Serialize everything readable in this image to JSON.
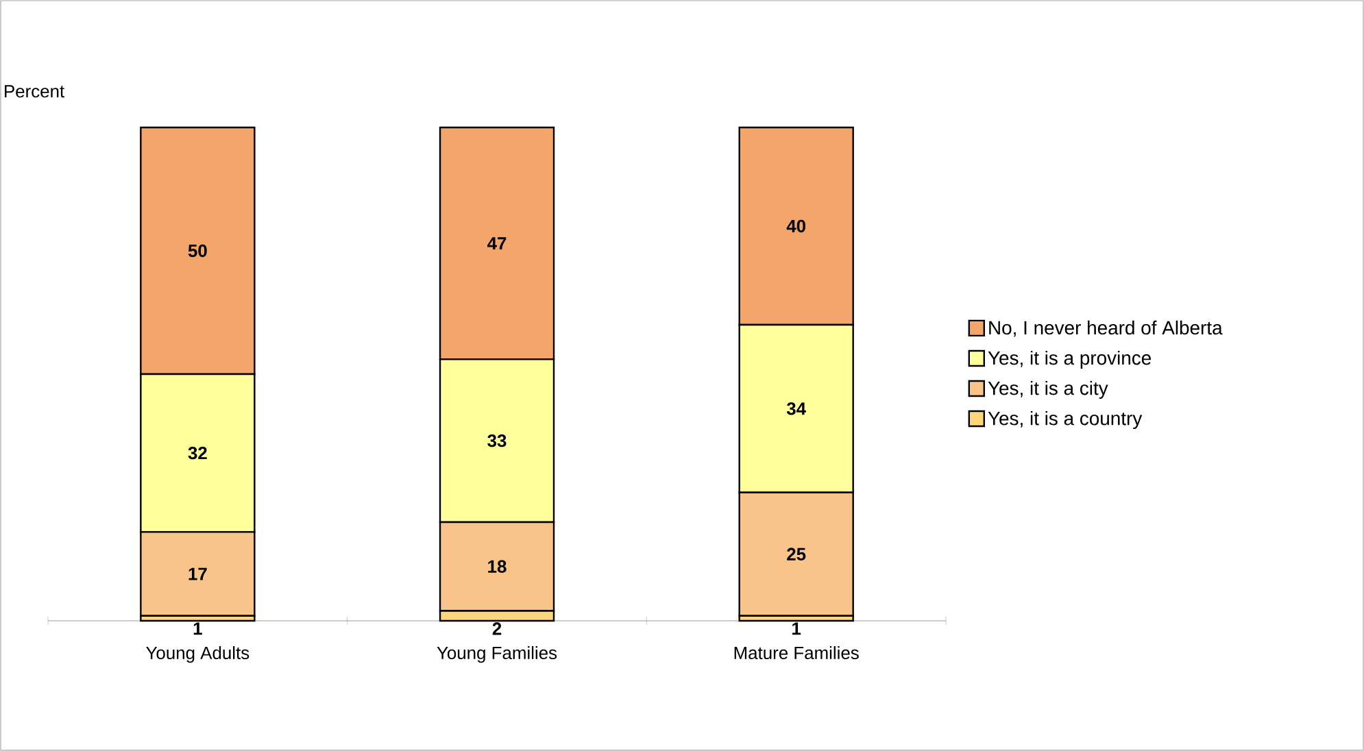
{
  "chart_data": {
    "type": "bar",
    "stacked": true,
    "ylabel": "Percent",
    "categories": [
      "Young Adults",
      "Young Families",
      "Mature Families"
    ],
    "ylim": [
      0,
      100
    ],
    "data_labels": true,
    "legend": "right",
    "series": [
      {
        "name": "Yes, it is a country",
        "color": "#fcd77a",
        "values": [
          1,
          2,
          1
        ]
      },
      {
        "name": "Yes, it is a city",
        "color": "#f9c48a",
        "values": [
          17,
          18,
          25
        ]
      },
      {
        "name": "Yes, it is a province",
        "color": "#ffff9c",
        "values": [
          32,
          33,
          34
        ]
      },
      {
        "name": "No, I never heard of Alberta",
        "color": "#f4a66a",
        "values": [
          50,
          47,
          40
        ]
      }
    ]
  }
}
